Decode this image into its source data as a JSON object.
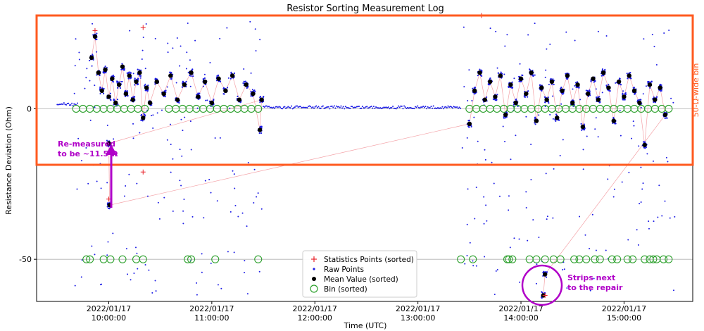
{
  "chart_data": {
    "type": "scatter",
    "title": "Resistor Sorting Measurement Log",
    "xlabel": "Time (UTC)",
    "ylabel": "Resistance Deviation (Ohm)",
    "xlim": [
      "2022-01-17T09:18:00",
      "2022-01-17T15:40:00"
    ],
    "ylim": [
      -64,
      31
    ],
    "x_ticks": [
      {
        "time": "2022-01-17T10:00:00",
        "line1": "2022/01/17",
        "line2": "10:00:00"
      },
      {
        "time": "2022-01-17T11:00:00",
        "line1": "2022/01/17",
        "line2": "11:00:00"
      },
      {
        "time": "2022-01-17T12:00:00",
        "line1": "2022/01/17",
        "line2": "12:00:00"
      },
      {
        "time": "2022-01-17T13:00:00",
        "line1": "2022/01/17",
        "line2": "13:00:00"
      },
      {
        "time": "2022-01-17T14:00:00",
        "line1": "2022/01/17",
        "line2": "14:00:00"
      },
      {
        "time": "2022-01-17T15:00:00",
        "line1": "2022/01/17",
        "line2": "15:00:00"
      }
    ],
    "y_ticks": [
      {
        "value": 0,
        "label": "0"
      },
      {
        "value": -50,
        "label": "-50"
      }
    ],
    "grid": "horizontal",
    "legend": {
      "placement": "lower-center",
      "entries": [
        {
          "label": "Statistics Points (sorted)",
          "marker": "plus",
          "color": "#e8242c"
        },
        {
          "label": "Raw Points",
          "marker": "dot",
          "color": "#1e1ee6"
        },
        {
          "label": "Mean Value (sorted)",
          "marker": "filled-circle",
          "color": "#000000"
        },
        {
          "label": "Bin (sorted)",
          "marker": "open-circle",
          "color": "#2ca02c"
        }
      ]
    },
    "colors": {
      "raw": "#1e1ee6",
      "mean": "#000000",
      "stats": "#e8242c",
      "stats_line": "#f4a3a8",
      "bin": "#2ca02c",
      "highlight_box": "#ff5a1f",
      "annotation": "#b000c8"
    },
    "series": [
      {
        "name": "Bin (sorted)",
        "marker": "open-circle",
        "points": [
          {
            "x": "2022-01-17T09:47:00",
            "y": -50
          },
          {
            "x": "2022-01-17T09:49:00",
            "y": -50
          },
          {
            "x": "2022-01-17T09:57:00",
            "y": -50
          },
          {
            "x": "2022-01-17T10:01:00",
            "y": -50
          },
          {
            "x": "2022-01-17T10:08:00",
            "y": -50
          },
          {
            "x": "2022-01-17T10:16:00",
            "y": -50
          },
          {
            "x": "2022-01-17T10:20:00",
            "y": -50
          },
          {
            "x": "2022-01-17T10:46:00",
            "y": -50
          },
          {
            "x": "2022-01-17T10:48:00",
            "y": -50
          },
          {
            "x": "2022-01-17T11:02:00",
            "y": -50
          },
          {
            "x": "2022-01-17T11:27:00",
            "y": -50
          },
          {
            "x": "2022-01-17T13:25:00",
            "y": -50
          },
          {
            "x": "2022-01-17T13:32:00",
            "y": -50
          },
          {
            "x": "2022-01-17T13:52:00",
            "y": -50
          },
          {
            "x": "2022-01-17T13:53:00",
            "y": -50
          },
          {
            "x": "2022-01-17T13:55:00",
            "y": -50
          },
          {
            "x": "2022-01-17T14:05:00",
            "y": -50
          },
          {
            "x": "2022-01-17T14:09:00",
            "y": -50
          },
          {
            "x": "2022-01-17T14:14:00",
            "y": -50
          },
          {
            "x": "2022-01-17T14:19:00",
            "y": -50
          },
          {
            "x": "2022-01-17T14:23:00",
            "y": -50
          },
          {
            "x": "2022-01-17T14:31:00",
            "y": -50
          },
          {
            "x": "2022-01-17T14:34:00",
            "y": -50
          },
          {
            "x": "2022-01-17T14:38:00",
            "y": -50
          },
          {
            "x": "2022-01-17T14:43:00",
            "y": -50
          },
          {
            "x": "2022-01-17T14:46:00",
            "y": -50
          },
          {
            "x": "2022-01-17T14:53:00",
            "y": -50
          },
          {
            "x": "2022-01-17T14:56:00",
            "y": -50
          },
          {
            "x": "2022-01-17T15:02:00",
            "y": -50
          },
          {
            "x": "2022-01-17T15:05:00",
            "y": -50
          },
          {
            "x": "2022-01-17T15:12:00",
            "y": -50
          },
          {
            "x": "2022-01-17T15:15:00",
            "y": -50
          },
          {
            "x": "2022-01-17T15:17:00",
            "y": -50
          },
          {
            "x": "2022-01-17T15:19:00",
            "y": -50
          },
          {
            "x": "2022-01-17T15:23:00",
            "y": -50
          },
          {
            "x": "2022-01-17T15:26:00",
            "y": -50
          },
          {
            "x": "2022-01-17T09:41:00",
            "y": 0
          },
          {
            "x": "2022-01-17T09:45:00",
            "y": 0
          },
          {
            "x": "2022-01-17T09:49:00",
            "y": 0
          },
          {
            "x": "2022-01-17T09:53:00",
            "y": 0
          },
          {
            "x": "2022-01-17T09:57:00",
            "y": 0
          },
          {
            "x": "2022-01-17T10:01:00",
            "y": 0
          },
          {
            "x": "2022-01-17T10:05:00",
            "y": 0
          },
          {
            "x": "2022-01-17T10:09:00",
            "y": 0
          },
          {
            "x": "2022-01-17T10:13:00",
            "y": 0
          },
          {
            "x": "2022-01-17T10:17:00",
            "y": 0
          },
          {
            "x": "2022-01-17T10:21:00",
            "y": 0
          },
          {
            "x": "2022-01-17T10:35:00",
            "y": 0
          },
          {
            "x": "2022-01-17T10:39:00",
            "y": 0
          },
          {
            "x": "2022-01-17T10:43:00",
            "y": 0
          },
          {
            "x": "2022-01-17T10:47:00",
            "y": 0
          },
          {
            "x": "2022-01-17T10:51:00",
            "y": 0
          },
          {
            "x": "2022-01-17T10:55:00",
            "y": 0
          },
          {
            "x": "2022-01-17T10:59:00",
            "y": 0
          },
          {
            "x": "2022-01-17T11:03:00",
            "y": 0
          },
          {
            "x": "2022-01-17T11:07:00",
            "y": 0
          },
          {
            "x": "2022-01-17T11:11:00",
            "y": 0
          },
          {
            "x": "2022-01-17T11:15:00",
            "y": 0
          },
          {
            "x": "2022-01-17T11:19:00",
            "y": 0
          },
          {
            "x": "2022-01-17T11:23:00",
            "y": 0
          },
          {
            "x": "2022-01-17T11:27:00",
            "y": 0
          },
          {
            "x": "2022-01-17T13:30:00",
            "y": 0
          },
          {
            "x": "2022-01-17T13:34:00",
            "y": 0
          },
          {
            "x": "2022-01-17T13:38:00",
            "y": 0
          },
          {
            "x": "2022-01-17T13:42:00",
            "y": 0
          },
          {
            "x": "2022-01-17T13:46:00",
            "y": 0
          },
          {
            "x": "2022-01-17T13:50:00",
            "y": 0
          },
          {
            "x": "2022-01-17T13:54:00",
            "y": 0
          },
          {
            "x": "2022-01-17T13:58:00",
            "y": 0
          },
          {
            "x": "2022-01-17T14:02:00",
            "y": 0
          },
          {
            "x": "2022-01-17T14:06:00",
            "y": 0
          },
          {
            "x": "2022-01-17T14:10:00",
            "y": 0
          },
          {
            "x": "2022-01-17T14:14:00",
            "y": 0
          },
          {
            "x": "2022-01-17T14:18:00",
            "y": 0
          },
          {
            "x": "2022-01-17T14:22:00",
            "y": 0
          },
          {
            "x": "2022-01-17T14:26:00",
            "y": 0
          },
          {
            "x": "2022-01-17T14:30:00",
            "y": 0
          },
          {
            "x": "2022-01-17T14:34:00",
            "y": 0
          },
          {
            "x": "2022-01-17T14:38:00",
            "y": 0
          },
          {
            "x": "2022-01-17T14:42:00",
            "y": 0
          },
          {
            "x": "2022-01-17T14:46:00",
            "y": 0
          },
          {
            "x": "2022-01-17T14:50:00",
            "y": 0
          },
          {
            "x": "2022-01-17T14:54:00",
            "y": 0
          },
          {
            "x": "2022-01-17T14:58:00",
            "y": 0
          },
          {
            "x": "2022-01-17T15:02:00",
            "y": 0
          },
          {
            "x": "2022-01-17T15:06:00",
            "y": 0
          },
          {
            "x": "2022-01-17T15:10:00",
            "y": 0
          },
          {
            "x": "2022-01-17T15:14:00",
            "y": 0
          },
          {
            "x": "2022-01-17T15:18:00",
            "y": 0
          },
          {
            "x": "2022-01-17T15:22:00",
            "y": 0
          },
          {
            "x": "2022-01-17T15:26:00",
            "y": 0
          }
        ]
      },
      {
        "name": "Mean Value (sorted)",
        "marker": "filled-circle",
        "points": [
          {
            "x": "2022-01-17T09:50:00",
            "y": 17
          },
          {
            "x": "2022-01-17T09:52:00",
            "y": 24
          },
          {
            "x": "2022-01-17T09:54:00",
            "y": 12
          },
          {
            "x": "2022-01-17T09:56:00",
            "y": 6
          },
          {
            "x": "2022-01-17T09:58:00",
            "y": 13
          },
          {
            "x": "2022-01-17T10:00:00",
            "y": 4
          },
          {
            "x": "2022-01-17T10:02:00",
            "y": 10
          },
          {
            "x": "2022-01-17T10:04:00",
            "y": 2
          },
          {
            "x": "2022-01-17T10:06:00",
            "y": 8
          },
          {
            "x": "2022-01-17T10:08:00",
            "y": 14
          },
          {
            "x": "2022-01-17T10:10:00",
            "y": 5
          },
          {
            "x": "2022-01-17T10:12:00",
            "y": 11
          },
          {
            "x": "2022-01-17T10:14:00",
            "y": 3
          },
          {
            "x": "2022-01-17T10:16:00",
            "y": 9
          },
          {
            "x": "2022-01-17T10:18:00",
            "y": 12
          },
          {
            "x": "2022-01-17T10:20:00",
            "y": -3
          },
          {
            "x": "2022-01-17T10:22:00",
            "y": 7
          },
          {
            "x": "2022-01-17T10:24:00",
            "y": 2
          },
          {
            "x": "2022-01-17T10:28:00",
            "y": 9
          },
          {
            "x": "2022-01-17T10:32:00",
            "y": 5
          },
          {
            "x": "2022-01-17T10:36:00",
            "y": 11
          },
          {
            "x": "2022-01-17T10:40:00",
            "y": 3
          },
          {
            "x": "2022-01-17T10:44:00",
            "y": 8
          },
          {
            "x": "2022-01-17T10:48:00",
            "y": 12
          },
          {
            "x": "2022-01-17T10:52:00",
            "y": 4
          },
          {
            "x": "2022-01-17T10:56:00",
            "y": 9
          },
          {
            "x": "2022-01-17T11:00:00",
            "y": 2
          },
          {
            "x": "2022-01-17T11:04:00",
            "y": 10
          },
          {
            "x": "2022-01-17T11:08:00",
            "y": 6
          },
          {
            "x": "2022-01-17T11:12:00",
            "y": 11
          },
          {
            "x": "2022-01-17T11:16:00",
            "y": 3
          },
          {
            "x": "2022-01-17T11:20:00",
            "y": 8
          },
          {
            "x": "2022-01-17T11:24:00",
            "y": 5
          },
          {
            "x": "2022-01-17T11:28:00",
            "y": -7
          },
          {
            "x": "2022-01-17T11:29:00",
            "y": 3
          },
          {
            "x": "2022-01-17T10:00:00",
            "y": -11.5
          },
          {
            "x": "2022-01-17T10:00:30",
            "y": -32
          },
          {
            "x": "2022-01-17T13:30:00",
            "y": -5
          },
          {
            "x": "2022-01-17T13:33:00",
            "y": 6
          },
          {
            "x": "2022-01-17T13:36:00",
            "y": 12
          },
          {
            "x": "2022-01-17T13:39:00",
            "y": 3
          },
          {
            "x": "2022-01-17T13:42:00",
            "y": 9
          },
          {
            "x": "2022-01-17T13:45:00",
            "y": 4
          },
          {
            "x": "2022-01-17T13:48:00",
            "y": 11
          },
          {
            "x": "2022-01-17T13:51:00",
            "y": -2
          },
          {
            "x": "2022-01-17T13:54:00",
            "y": 8
          },
          {
            "x": "2022-01-17T13:57:00",
            "y": 2
          },
          {
            "x": "2022-01-17T14:00:00",
            "y": 10
          },
          {
            "x": "2022-01-17T14:03:00",
            "y": 5
          },
          {
            "x": "2022-01-17T14:06:00",
            "y": 12
          },
          {
            "x": "2022-01-17T14:09:00",
            "y": -4
          },
          {
            "x": "2022-01-17T14:12:00",
            "y": 7
          },
          {
            "x": "2022-01-17T14:15:00",
            "y": 3
          },
          {
            "x": "2022-01-17T14:18:00",
            "y": 9
          },
          {
            "x": "2022-01-17T14:21:00",
            "y": -3
          },
          {
            "x": "2022-01-17T14:24:00",
            "y": 6
          },
          {
            "x": "2022-01-17T14:27:00",
            "y": 11
          },
          {
            "x": "2022-01-17T14:30:00",
            "y": 2
          },
          {
            "x": "2022-01-17T14:33:00",
            "y": 8
          },
          {
            "x": "2022-01-17T14:36:00",
            "y": -6
          },
          {
            "x": "2022-01-17T14:39:00",
            "y": 5
          },
          {
            "x": "2022-01-17T14:42:00",
            "y": 10
          },
          {
            "x": "2022-01-17T14:45:00",
            "y": 3
          },
          {
            "x": "2022-01-17T14:48:00",
            "y": 12
          },
          {
            "x": "2022-01-17T14:51:00",
            "y": 7
          },
          {
            "x": "2022-01-17T14:54:00",
            "y": -4
          },
          {
            "x": "2022-01-17T14:57:00",
            "y": 9
          },
          {
            "x": "2022-01-17T15:00:00",
            "y": 4
          },
          {
            "x": "2022-01-17T15:03:00",
            "y": 11
          },
          {
            "x": "2022-01-17T15:06:00",
            "y": 6
          },
          {
            "x": "2022-01-17T15:09:00",
            "y": 2
          },
          {
            "x": "2022-01-17T15:12:00",
            "y": -12
          },
          {
            "x": "2022-01-17T15:15:00",
            "y": 8
          },
          {
            "x": "2022-01-17T15:18:00",
            "y": 3
          },
          {
            "x": "2022-01-17T15:21:00",
            "y": 7
          },
          {
            "x": "2022-01-17T15:24:00",
            "y": -2
          },
          {
            "x": "2022-01-17T14:14:00",
            "y": -55
          },
          {
            "x": "2022-01-17T14:13:00",
            "y": -62
          }
        ]
      },
      {
        "name": "Statistics Points (sorted)",
        "marker": "plus",
        "points": [
          {
            "x": "2022-01-17T09:52:00",
            "y": 26
          },
          {
            "x": "2022-01-17T10:20:00",
            "y": 27
          },
          {
            "x": "2022-01-17T10:20:00",
            "y": -21
          },
          {
            "x": "2022-01-17T13:37:00",
            "y": 31
          },
          {
            "x": "2022-01-17T10:00:00",
            "y": -30
          },
          {
            "x": "2022-01-17T14:14:00",
            "y": -62
          }
        ]
      },
      {
        "name": "Raw Points",
        "marker": "dot",
        "note_segments": [
          {
            "from": "2022-01-17T09:30:00",
            "to": "2022-01-17T09:42:00",
            "level": 1.5
          },
          {
            "from": "2022-01-17T11:30:00",
            "to": "2022-01-17T13:25:00",
            "level": 0.5
          }
        ]
      }
    ],
    "annotations": [
      {
        "id": "remeasured",
        "lines": [
          "Re-measured",
          "to be ~11.5 Ω"
        ],
        "color": "#b000c8"
      },
      {
        "id": "strips",
        "lines": [
          "Strips next",
          "to the repair"
        ],
        "color": "#b000c8"
      },
      {
        "id": "bin-width",
        "text": "50-Ω-wide bin",
        "color": "#ff5a1f"
      }
    ]
  }
}
